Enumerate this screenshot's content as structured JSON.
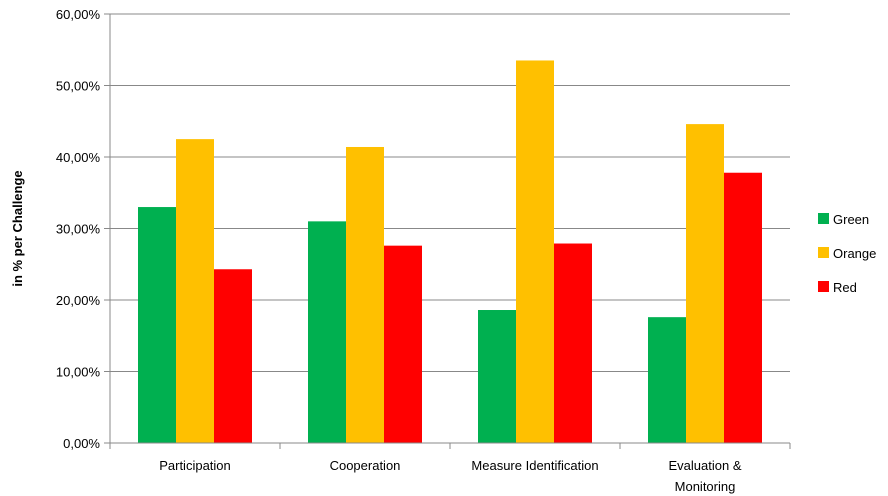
{
  "chart_data": {
    "type": "bar",
    "categories": [
      "Participation",
      "Cooperation",
      "Measure Identification",
      "Evaluation & Monitoring"
    ],
    "category_lines": [
      [
        "Participation"
      ],
      [
        "Cooperation"
      ],
      [
        "Measure Identification"
      ],
      [
        "Evaluation &",
        "Monitoring"
      ]
    ],
    "series": [
      {
        "name": "Green",
        "color": "#00b050",
        "values": [
          33.0,
          31.0,
          18.6,
          17.6
        ]
      },
      {
        "name": "Orange",
        "color": "#ffc000",
        "values": [
          42.5,
          41.4,
          53.5,
          44.6
        ]
      },
      {
        "name": "Red",
        "color": "#ff0000",
        "values": [
          24.3,
          27.6,
          27.9,
          37.8
        ]
      }
    ],
    "ylabel": "in % per Challenge",
    "xlabel": "",
    "ylim": [
      0,
      60
    ],
    "yticks": [
      0,
      10,
      20,
      30,
      40,
      50,
      60
    ],
    "ytick_labels": [
      "0,00%",
      "10,00%",
      "20,00%",
      "30,00%",
      "40,00%",
      "50,00%",
      "60,00%"
    ],
    "grid": true,
    "legend_position": "right"
  }
}
